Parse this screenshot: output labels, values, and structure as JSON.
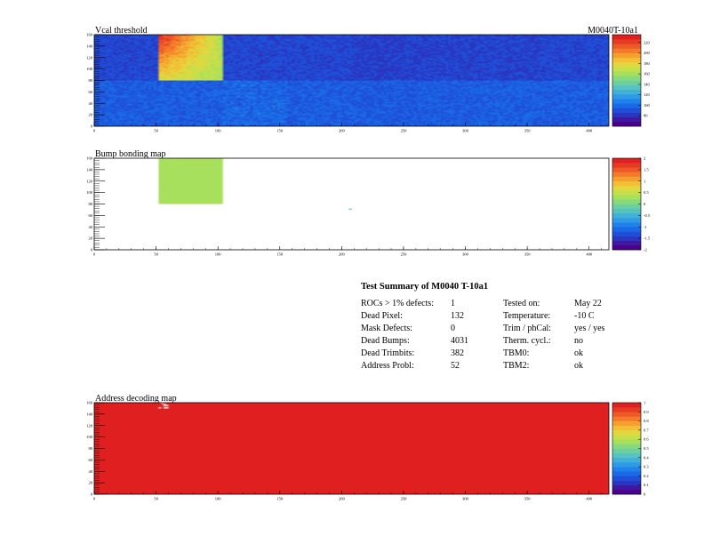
{
  "colors": {
    "palette": [
      "#4a008b",
      "#4018a0",
      "#2a35c0",
      "#1f4fd8",
      "#1a69e6",
      "#1f82ea",
      "#2f9ae6",
      "#43b0d8",
      "#57c2bf",
      "#6bcfa0",
      "#86d97d",
      "#a6e05c",
      "#c6e04a",
      "#e3d73e",
      "#f2bf36",
      "#f59f2f",
      "#f47b2a",
      "#ee5a27",
      "#e63b23",
      "#e02020"
    ],
    "frame": "#000000",
    "background": "#ffffff"
  },
  "module_label": "M0040T-10a1",
  "charts": [
    {
      "id": "vcal",
      "title": "Vcal threshold",
      "type": "heatmap",
      "xlim": [
        0,
        416
      ],
      "ylim": [
        0,
        160
      ],
      "x_ticks": [
        0,
        50,
        100,
        150,
        200,
        250,
        300,
        350,
        400
      ],
      "x_tick_labels": [
        "0",
        "50",
        "100",
        "150",
        "200",
        "250",
        "300",
        "350",
        "400"
      ],
      "y_ticks": [
        0,
        20,
        40,
        60,
        80,
        100,
        120,
        140,
        160
      ],
      "y_tick_labels": [
        "0",
        "20",
        "40",
        "60",
        "80",
        "100",
        "120",
        "140",
        "160"
      ],
      "z_ticks": [
        80,
        100,
        120,
        140,
        160,
        180,
        200,
        220
      ],
      "z_tick_labels": [
        "80",
        "100",
        "120",
        "140",
        "160",
        "180",
        "200",
        "220"
      ]
    },
    {
      "id": "bump",
      "title": "Bump bonding map",
      "type": "heatmap",
      "xlim": [
        0,
        416
      ],
      "ylim": [
        0,
        160
      ],
      "x_ticks": [
        0,
        50,
        100,
        150,
        200,
        250,
        300,
        350,
        400
      ],
      "x_tick_labels": [
        "0",
        "50",
        "100",
        "150",
        "200",
        "250",
        "300",
        "350",
        "400"
      ],
      "y_ticks": [
        0,
        20,
        40,
        60,
        80,
        100,
        120,
        140,
        160
      ],
      "y_tick_labels": [
        "0",
        "20",
        "40",
        "60",
        "80",
        "100",
        "120",
        "140",
        "160"
      ],
      "z_ticks": [
        -2,
        -1.5,
        -1,
        -0.5,
        0,
        0.5,
        1,
        1.5,
        2
      ],
      "z_tick_labels": [
        "-2",
        "-1.5",
        "-1",
        "-0.5",
        "0",
        "0.5",
        "1",
        "1.5",
        "2"
      ]
    },
    {
      "id": "address",
      "title": "Address decoding map",
      "type": "heatmap",
      "xlim": [
        0,
        416
      ],
      "ylim": [
        0,
        160
      ],
      "x_ticks": [
        0,
        50,
        100,
        150,
        200,
        250,
        300,
        350,
        400
      ],
      "x_tick_labels": [
        "0",
        "50",
        "100",
        "150",
        "200",
        "250",
        "300",
        "350",
        "400"
      ],
      "y_ticks": [
        0,
        20,
        40,
        60,
        80,
        100,
        120,
        140,
        160
      ],
      "y_tick_labels": [
        "0",
        "20",
        "40",
        "60",
        "80",
        "100",
        "120",
        "140",
        "160"
      ],
      "z_ticks": [
        0,
        0.1,
        0.2,
        0.3,
        0.4,
        0.5,
        0.6,
        0.7,
        0.8,
        0.9,
        1
      ],
      "z_tick_labels": [
        "0",
        "0.1",
        "0.2",
        "0.3",
        "0.4",
        "0.5",
        "0.6",
        "0.7",
        "0.8",
        "0.9",
        "1"
      ]
    }
  ],
  "chart_data": [
    {
      "type": "heatmap",
      "title": "Vcal threshold",
      "xlim": [
        0,
        416
      ],
      "ylim": [
        0,
        160
      ],
      "z_range": [
        60,
        235
      ],
      "roc_grid": {
        "columns": 8,
        "rows": 2,
        "roc_width": 52,
        "roc_height": 80
      },
      "roc_mean_values": [
        [
          88,
          88,
          88,
          88,
          85,
          86,
          86,
          88
        ],
        [
          95,
          96,
          98,
          95,
          94,
          95,
          96,
          95
        ]
      ],
      "hot_roc": {
        "x_range": [
          52,
          104
        ],
        "y_range": [
          80,
          160
        ],
        "mean": 175,
        "top_left_peak": 230
      }
    },
    {
      "type": "heatmap",
      "title": "Bump bonding map",
      "xlim": [
        0,
        416
      ],
      "ylim": [
        0,
        160
      ],
      "z_range": [
        -2,
        2
      ],
      "filled_regions": [
        {
          "x_range": [
            52,
            104
          ],
          "y_range": [
            80,
            160
          ],
          "value": 0.3
        }
      ],
      "isolated_pixels": [
        {
          "x": 206,
          "y": 70,
          "value": -0.3
        }
      ]
    },
    {
      "type": "heatmap",
      "title": "Address decoding map",
      "xlim": [
        0,
        416
      ],
      "ylim": [
        0,
        160
      ],
      "z_range": [
        0,
        1
      ],
      "uniform_value": 1,
      "failed_pixels": [
        {
          "x_range": [
            52,
            53
          ],
          "y_range": [
            80,
            160
          ],
          "value": 0
        },
        {
          "x_range": [
            53,
            60
          ],
          "y_range": [
            150,
            160
          ],
          "value": 0
        }
      ]
    }
  ],
  "summary": {
    "title": "Test Summary of M0040     T-10a1",
    "left_rows": [
      {
        "label": "ROCs > 1% defects:",
        "value": "1"
      },
      {
        "label": "Dead Pixel:",
        "value": "132"
      },
      {
        "label": "Mask Defects:",
        "value": "0"
      },
      {
        "label": "Dead Bumps:",
        "value": "4031"
      },
      {
        "label": "Dead Trimbits:",
        "value": "382"
      },
      {
        "label": "Address Probl:",
        "value": "52"
      }
    ],
    "right_rows": [
      {
        "label": "Tested on:",
        "value": "May 22"
      },
      {
        "label": "Temperature:",
        "value": "-10 C"
      },
      {
        "label": "Trim / phCal:",
        "value": "yes / yes"
      },
      {
        "label": "Therm. cycl.:",
        "value": "no"
      },
      {
        "label": "TBM0:",
        "value": "ok"
      },
      {
        "label": "TBM2:",
        "value": "ok"
      }
    ]
  }
}
